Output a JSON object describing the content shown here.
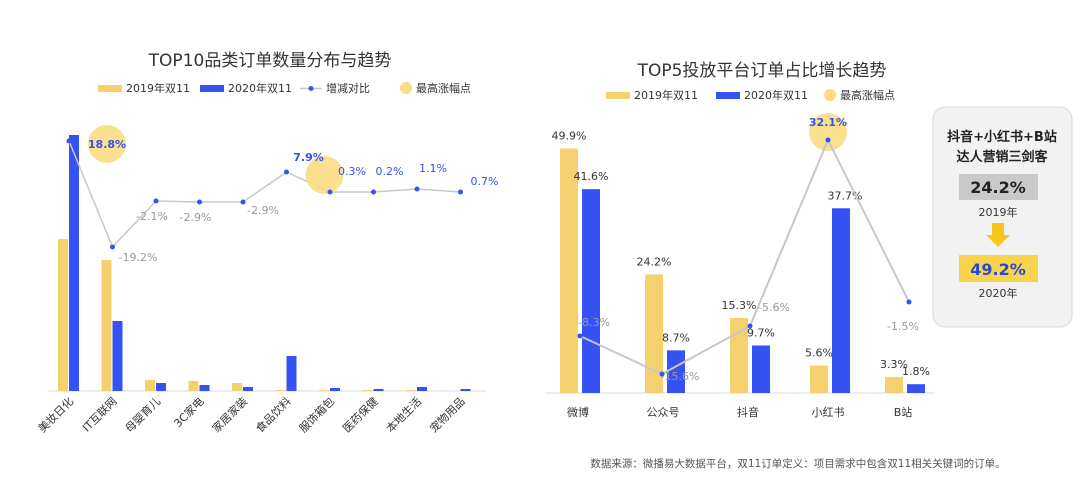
{
  "colors": {
    "y2019": "#F4D06F",
    "y2020": "#3552F2",
    "line": "#C8C8C8",
    "dot": "#3552F2",
    "highlight": "#F9DC83",
    "pct_pos": "#3552F2",
    "pct_neg": "#999999",
    "box_bg": "#F2F2F2",
    "badge_gray": "#C9C9C9",
    "badge_yellow": "#F8D44E",
    "arrow": "#F8C51A"
  },
  "chart_data": [
    {
      "type": "bar",
      "title": "TOP10品类订单数量分布与趋势",
      "legend": [
        "2019年双11",
        "2020年双11",
        "增减对比",
        "最高涨幅点"
      ],
      "categories": [
        "美妆日化",
        "IT互联网",
        "母婴育儿",
        "3C家电",
        "家居家装",
        "食品饮料",
        "服饰箱包",
        "医药保健",
        "本地生活",
        "宠物用品"
      ],
      "series": [
        {
          "name": "2019年双11",
          "values": [
            152,
            131,
            11,
            10,
            8,
            1,
            1,
            1,
            1,
            0
          ]
        },
        {
          "name": "2020年双11",
          "values": [
            256,
            70,
            8,
            6,
            4,
            35,
            3,
            2,
            4,
            2
          ]
        }
      ],
      "change_labels": [
        "18.8%",
        "-19.2%",
        "-2.1%",
        "-2.9%",
        "-2.9%",
        "7.9%",
        "0.3%",
        "0.2%",
        "1.1%",
        "0.7%"
      ],
      "change_values": [
        18.8,
        -19.2,
        -2.1,
        -2.9,
        -2.9,
        7.9,
        0.3,
        0.2,
        1.1,
        0.7
      ],
      "highlight_points": [
        0,
        5
      ]
    },
    {
      "type": "bar",
      "title": "TOP5投放平台订单占比增长趋势",
      "legend": [
        "2019年双11",
        "2020年双11",
        "最高涨幅点"
      ],
      "categories": [
        "微博",
        "公众号",
        "抖音",
        "小红书",
        "B站"
      ],
      "series": [
        {
          "name": "2019年双11",
          "values": [
            49.9,
            24.2,
            15.3,
            5.6,
            3.3
          ],
          "labels": [
            "49.9%",
            "24.2%",
            "15.3%",
            "5.6%",
            "3.3%"
          ]
        },
        {
          "name": "2020年双11",
          "values": [
            41.6,
            8.7,
            9.7,
            37.7,
            1.8
          ],
          "labels": [
            "41.6%",
            "8.7%",
            "9.7%",
            "37.7%",
            "1.8%"
          ]
        }
      ],
      "change_labels": [
        "-8.3%",
        "-15.6%",
        "-5.6%",
        "32.1%",
        "-1.5%"
      ],
      "change_values": [
        -8.3,
        -15.6,
        -5.6,
        32.1,
        -1.5
      ],
      "highlight_points": [
        3
      ]
    }
  ],
  "side_panel": {
    "title_line1": "抖音+小红书+B站",
    "title_line2": "达人营销三剑客",
    "value_2019": "24.2%",
    "year_2019": "2019年",
    "value_2020": "49.2%",
    "year_2020": "2020年"
  },
  "source_note": "数据来源：微播易大数据平台，双11订单定义：项目需求中包含双11相关关键词的订单。"
}
